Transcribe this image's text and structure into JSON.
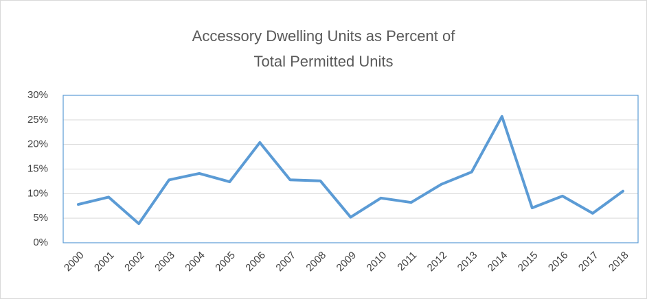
{
  "chart_data": {
    "type": "line",
    "title": "Accessory Dwelling Units as Percent of Total Permitted Units",
    "categories": [
      "2000",
      "2001",
      "2002",
      "2003",
      "2004",
      "2005",
      "2006",
      "2007",
      "2008",
      "2009",
      "2010",
      "2011",
      "2012",
      "2013",
      "2014",
      "2015",
      "2016",
      "2017",
      "2018"
    ],
    "series": [
      {
        "color": "#5b9bd5",
        "values": [
          7.8,
          9.3,
          3.9,
          12.8,
          14.1,
          12.4,
          20.4,
          12.8,
          12.6,
          5.2,
          9.1,
          8.2,
          11.9,
          14.4,
          25.7,
          7.1,
          9.5,
          6.0,
          10.5
        ]
      }
    ],
    "ylim": [
      0,
      30
    ],
    "yticks": [
      {
        "value": 0,
        "label": "0%"
      },
      {
        "value": 5,
        "label": "5%"
      },
      {
        "value": 10,
        "label": "10%"
      },
      {
        "value": 15,
        "label": "15%"
      },
      {
        "value": 20,
        "label": "20%"
      },
      {
        "value": 25,
        "label": "25%"
      },
      {
        "value": 30,
        "label": "30%"
      }
    ],
    "grid": true
  }
}
